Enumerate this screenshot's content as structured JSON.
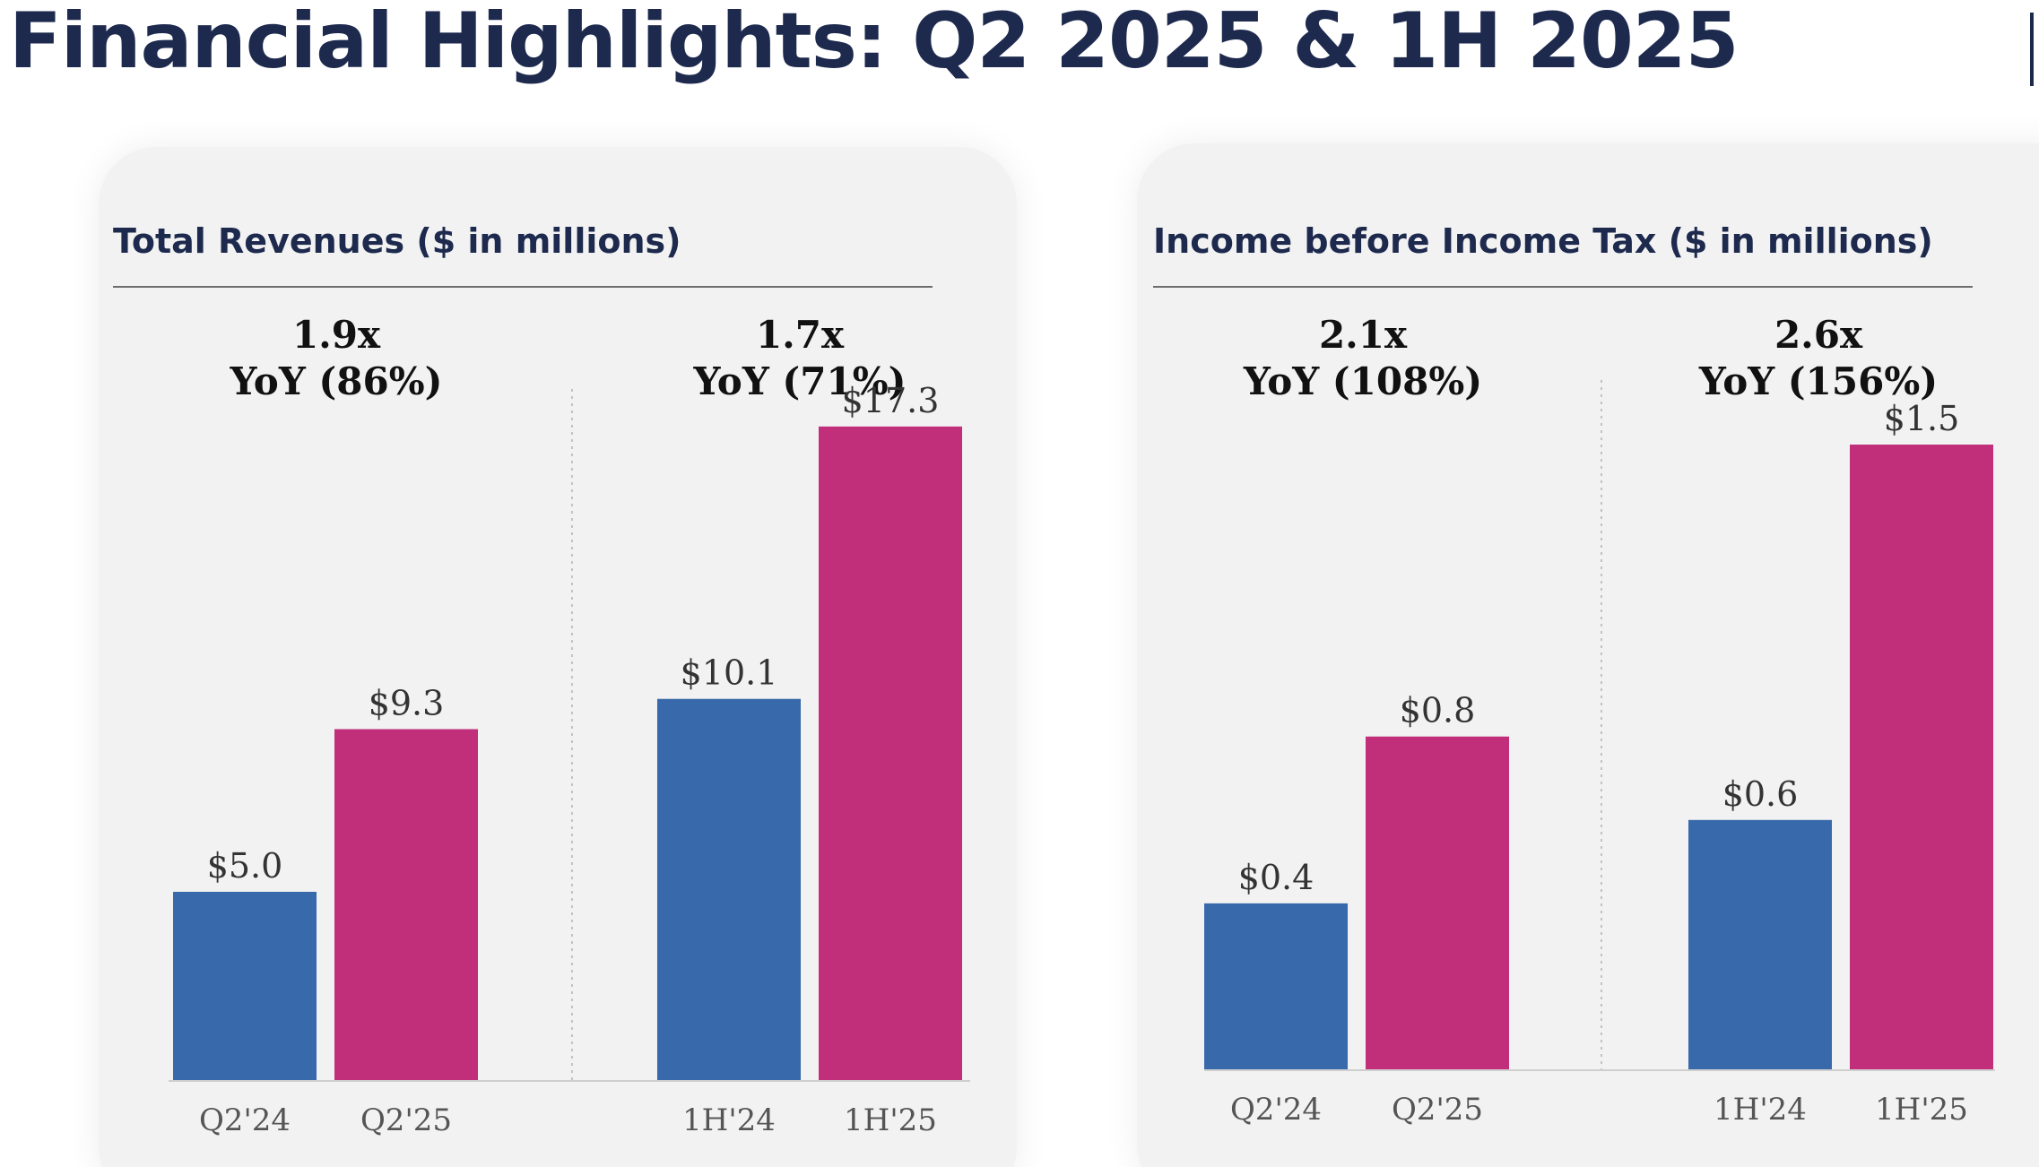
{
  "page": {
    "title": "Financial Highlights: Q2 2025 & 1H 2025"
  },
  "colors": {
    "prior": "#386aab",
    "current": "#c12e79",
    "title": "#1d2a4e",
    "panel_bg": "#f2f2f2"
  },
  "chart_data": [
    {
      "type": "bar",
      "title": "Total Revenues ($ in millions)",
      "categories": [
        "Q2'24",
        "Q2'25",
        "1H'24",
        "1H'25"
      ],
      "values": [
        5.0,
        9.3,
        10.1,
        17.3
      ],
      "value_labels": [
        "$5.0",
        "$9.3",
        "$10.1",
        "$17.3"
      ],
      "ylim": [
        0,
        19.5
      ],
      "groups": [
        {
          "line1": "1.9x",
          "line2": "YoY (86%)"
        },
        {
          "line1": "1.7x",
          "line2": "YoY (71%)"
        }
      ],
      "xlabel": "",
      "ylabel": "",
      "grid": false
    },
    {
      "type": "bar",
      "title": "Income before Income Tax ($ in millions)",
      "categories": [
        "Q2'24",
        "Q2'25",
        "1H'24",
        "1H'25"
      ],
      "values": [
        0.4,
        0.8,
        0.6,
        1.5
      ],
      "value_labels": [
        "$0.4",
        "$0.8",
        "$0.6",
        "$1.5"
      ],
      "ylim": [
        0,
        1.73
      ],
      "groups": [
        {
          "line1": "2.1x",
          "line2": "YoY (108%)"
        },
        {
          "line1": "2.6x",
          "line2": "YoY (156%)"
        }
      ],
      "xlabel": "",
      "ylabel": "",
      "grid": false
    }
  ]
}
